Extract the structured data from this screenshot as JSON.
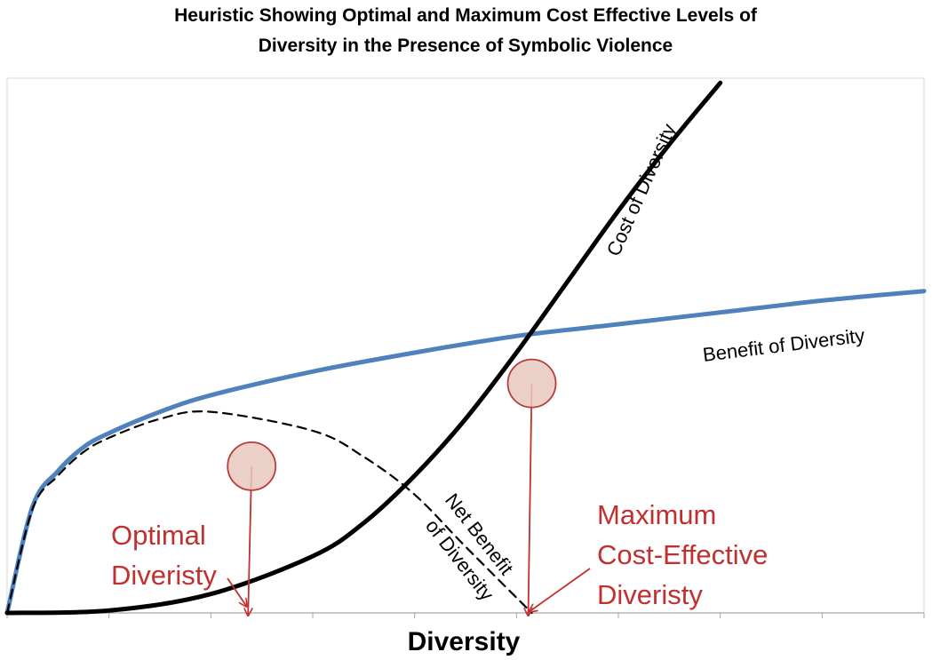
{
  "chart_data": {
    "type": "line",
    "title_lines": [
      "Heuristic Showing Optimal and Maximum Cost Effective Levels of",
      "Diversity in the Presence of Symbolic Violence"
    ],
    "xlabel": "Diversity",
    "ylabel": "",
    "x_ticks_count": 9,
    "grid": false,
    "series": [
      {
        "name": "Benefit of Diversity",
        "color": "#4f81bd",
        "style": "solid",
        "x": [
          0,
          0.25,
          0.5,
          0.75,
          1,
          1.5,
          2,
          3,
          4,
          5,
          6,
          7,
          8,
          9
        ],
        "y": [
          0,
          2.25,
          3.0,
          3.5,
          3.8,
          4.25,
          4.6,
          5.1,
          5.5,
          5.85,
          6.1,
          6.35,
          6.6,
          6.8
        ]
      },
      {
        "name": "Cost of Diversity",
        "color": "#000000",
        "style": "solid",
        "x": [
          0,
          1,
          2,
          3,
          3.5,
          4,
          4.5,
          5,
          5.5,
          6,
          6.5,
          7
        ],
        "y": [
          0,
          0.05,
          0.4,
          1.2,
          1.9,
          2.9,
          4.1,
          5.5,
          7.0,
          8.5,
          9.9,
          11.2
        ]
      },
      {
        "name": "Net Benefit of Diversity",
        "color": "#000000",
        "style": "dashed",
        "x": [
          0,
          0.25,
          0.5,
          0.75,
          1,
          1.5,
          2,
          2.4,
          3,
          3.5,
          4,
          4.5,
          5.15
        ],
        "y": [
          0,
          2.2,
          2.9,
          3.4,
          3.7,
          4.1,
          4.25,
          3.1,
          3.85,
          3.3,
          2.5,
          1.4,
          0
        ]
      }
    ],
    "markers": [
      {
        "name": "Optimal Diveristy",
        "x": 2.4,
        "y": 3.1
      },
      {
        "name": "Maximum Cost-Effective Diveristy",
        "x": 5.15,
        "y": 4.85
      }
    ],
    "annotations": {
      "optimal": [
        "Optimal",
        "Diveristy"
      ],
      "max_cost_effective": [
        "Maximum",
        "Cost-Effective",
        "Diveristy"
      ],
      "cost_label": "Cost of Diversity",
      "benefit_label": "Benefit of Diversity",
      "net_label": [
        "Net Benefit",
        "of Diversity"
      ]
    },
    "colors": {
      "benefit": "#4f81bd",
      "cost": "#000000",
      "marker_fill": "#e8c8bd",
      "marker_stroke": "#b93d3d",
      "annotation": "#c0302f"
    },
    "xlim": [
      0,
      9
    ],
    "ylim": [
      0,
      11.3
    ]
  }
}
